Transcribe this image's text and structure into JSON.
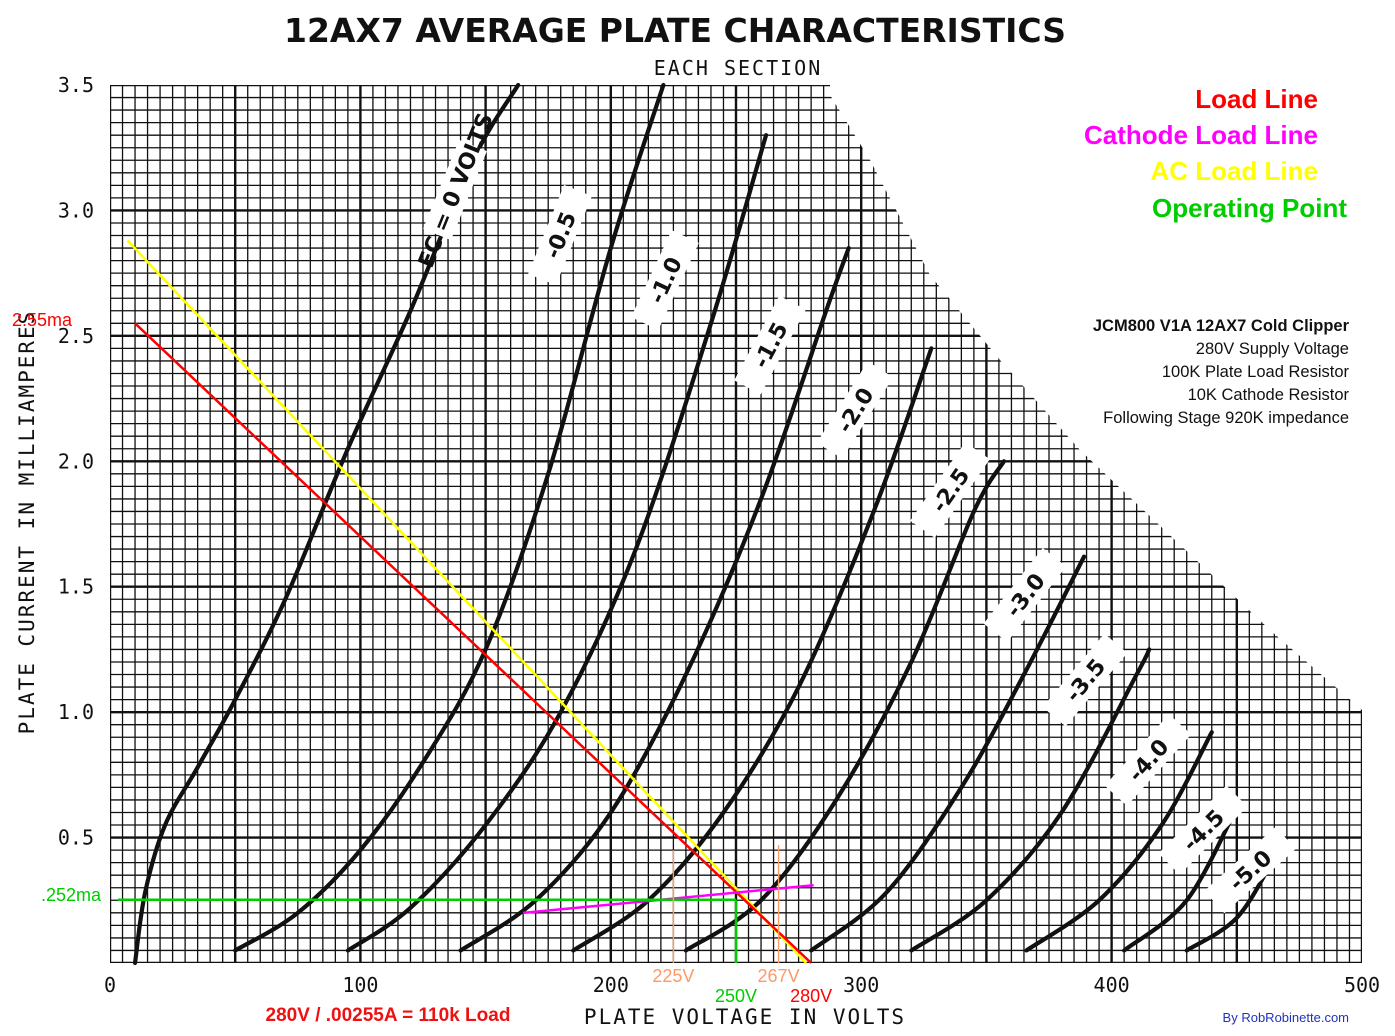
{
  "chart_data": {
    "type": "line",
    "title": "12AX7 AVERAGE PLATE CHARACTERISTICS",
    "subtitle": "EACH SECTION",
    "xlabel": "PLATE VOLTAGE IN VOLTS",
    "ylabel": "PLATE CURRENT IN MILLIAMPERES",
    "xlim": [
      0,
      500
    ],
    "ylim": [
      0,
      3.5
    ],
    "x_ticks": [
      "0",
      "100",
      "200",
      "300",
      "400",
      "500"
    ],
    "y_ticks": [
      "0.5",
      "1.0",
      "1.5",
      "2.0",
      "2.5",
      "3.0",
      "3.5"
    ],
    "grid": true,
    "series": [
      {
        "name": "EC = 0 VOLTS",
        "label": "EC = 0 VOLTS",
        "x": [
          10,
          14,
          22,
          35,
          50,
          70,
          95,
          120,
          145,
          163
        ],
        "y": [
          0,
          0.28,
          0.55,
          0.78,
          1.05,
          1.45,
          2.05,
          2.6,
          3.2,
          3.5
        ]
      },
      {
        "name": "-0.5",
        "label": "-0.5",
        "x": [
          50,
          75,
          100,
          125,
          150,
          175,
          200,
          221
        ],
        "y": [
          0.05,
          0.2,
          0.45,
          0.8,
          1.25,
          1.95,
          2.85,
          3.5
        ]
      },
      {
        "name": "-1.0",
        "label": "-1.0",
        "x": [
          95,
          120,
          150,
          180,
          210,
          240,
          262
        ],
        "y": [
          0.05,
          0.22,
          0.55,
          1.0,
          1.65,
          2.55,
          3.3
        ]
      },
      {
        "name": "-1.5",
        "label": "-1.5",
        "x": [
          140,
          170,
          200,
          230,
          260,
          286,
          295
        ],
        "y": [
          0.05,
          0.25,
          0.6,
          1.15,
          1.85,
          2.6,
          2.85
        ]
      },
      {
        "name": "-2.0",
        "label": "-2.0",
        "x": [
          185,
          215,
          245,
          275,
          305,
          328
        ],
        "y": [
          0.05,
          0.25,
          0.6,
          1.1,
          1.8,
          2.45
        ]
      },
      {
        "name": "-2.5",
        "label": "-2.5",
        "x": [
          230,
          260,
          290,
          320,
          345,
          357
        ],
        "y": [
          0.05,
          0.25,
          0.65,
          1.2,
          1.8,
          2.0
        ]
      },
      {
        "name": "-3.0",
        "label": "-3.0",
        "x": [
          280,
          310,
          340,
          365,
          389
        ],
        "y": [
          0.05,
          0.28,
          0.7,
          1.15,
          1.62
        ]
      },
      {
        "name": "-3.5",
        "label": "-3.5",
        "x": [
          320,
          350,
          380,
          410,
          415
        ],
        "y": [
          0.05,
          0.25,
          0.6,
          1.15,
          1.25
        ]
      },
      {
        "name": "-4.0",
        "label": "-4.0",
        "x": [
          366,
          395,
          420,
          440
        ],
        "y": [
          0.05,
          0.25,
          0.55,
          0.92
        ]
      },
      {
        "name": "-4.5",
        "label": "-4.5",
        "x": [
          405,
          430,
          450
        ],
        "y": [
          0.05,
          0.25,
          0.62
        ]
      },
      {
        "name": "-5.0",
        "label": "-5.0",
        "x": [
          430,
          450,
          465
        ],
        "y": [
          0.05,
          0.18,
          0.42
        ]
      }
    ],
    "load_lines": [
      {
        "name": "Load Line",
        "color": "#ff0000",
        "x": [
          10,
          280
        ],
        "y": [
          2.55,
          0
        ]
      },
      {
        "name": "AC Load Line",
        "color": "#ffff00",
        "x": [
          7,
          278
        ],
        "y": [
          2.88,
          0
        ]
      },
      {
        "name": "Cathode Load Line",
        "color": "#ff00ff",
        "x": [
          165,
          281
        ],
        "y": [
          0.2,
          0.31
        ]
      },
      {
        "name": "Operating Point",
        "color": "#00cc00",
        "x_op": 250,
        "y_op": 0.252
      }
    ],
    "reference_lines": [
      {
        "label": "225V",
        "x": 225,
        "color": "#ff9966"
      },
      {
        "label": "267V",
        "x": 267,
        "color": "#ff9966"
      },
      {
        "label": "250V",
        "x": 250,
        "color": "#00cc00"
      },
      {
        "label": "280V",
        "x": 280,
        "color": "#ff0000"
      },
      {
        "label": "2.55ma",
        "y": 2.55,
        "color": "#ff0000"
      },
      {
        "label": ".252ma",
        "y": 0.252,
        "color": "#00cc00"
      }
    ]
  },
  "legend": [
    {
      "label": "Load Line",
      "color": "#ff0000"
    },
    {
      "label": "Cathode Load Line",
      "color": "#ff00ff"
    },
    {
      "label": "AC Load Line",
      "color": "#ffff00"
    },
    {
      "label": "Operating Point",
      "color": "#00cc00"
    }
  ],
  "info": {
    "title": "JCM800 V1A 12AX7 Cold Clipper",
    "lines": [
      "280V Supply Voltage",
      "100K Plate Load Resistor",
      "10K Cathode Resistor",
      "Following Stage 920K impedance"
    ]
  },
  "annotations": {
    "load_calc": "280V / .00255A = 110k Load",
    "credit": "By RobRobinette.com"
  }
}
